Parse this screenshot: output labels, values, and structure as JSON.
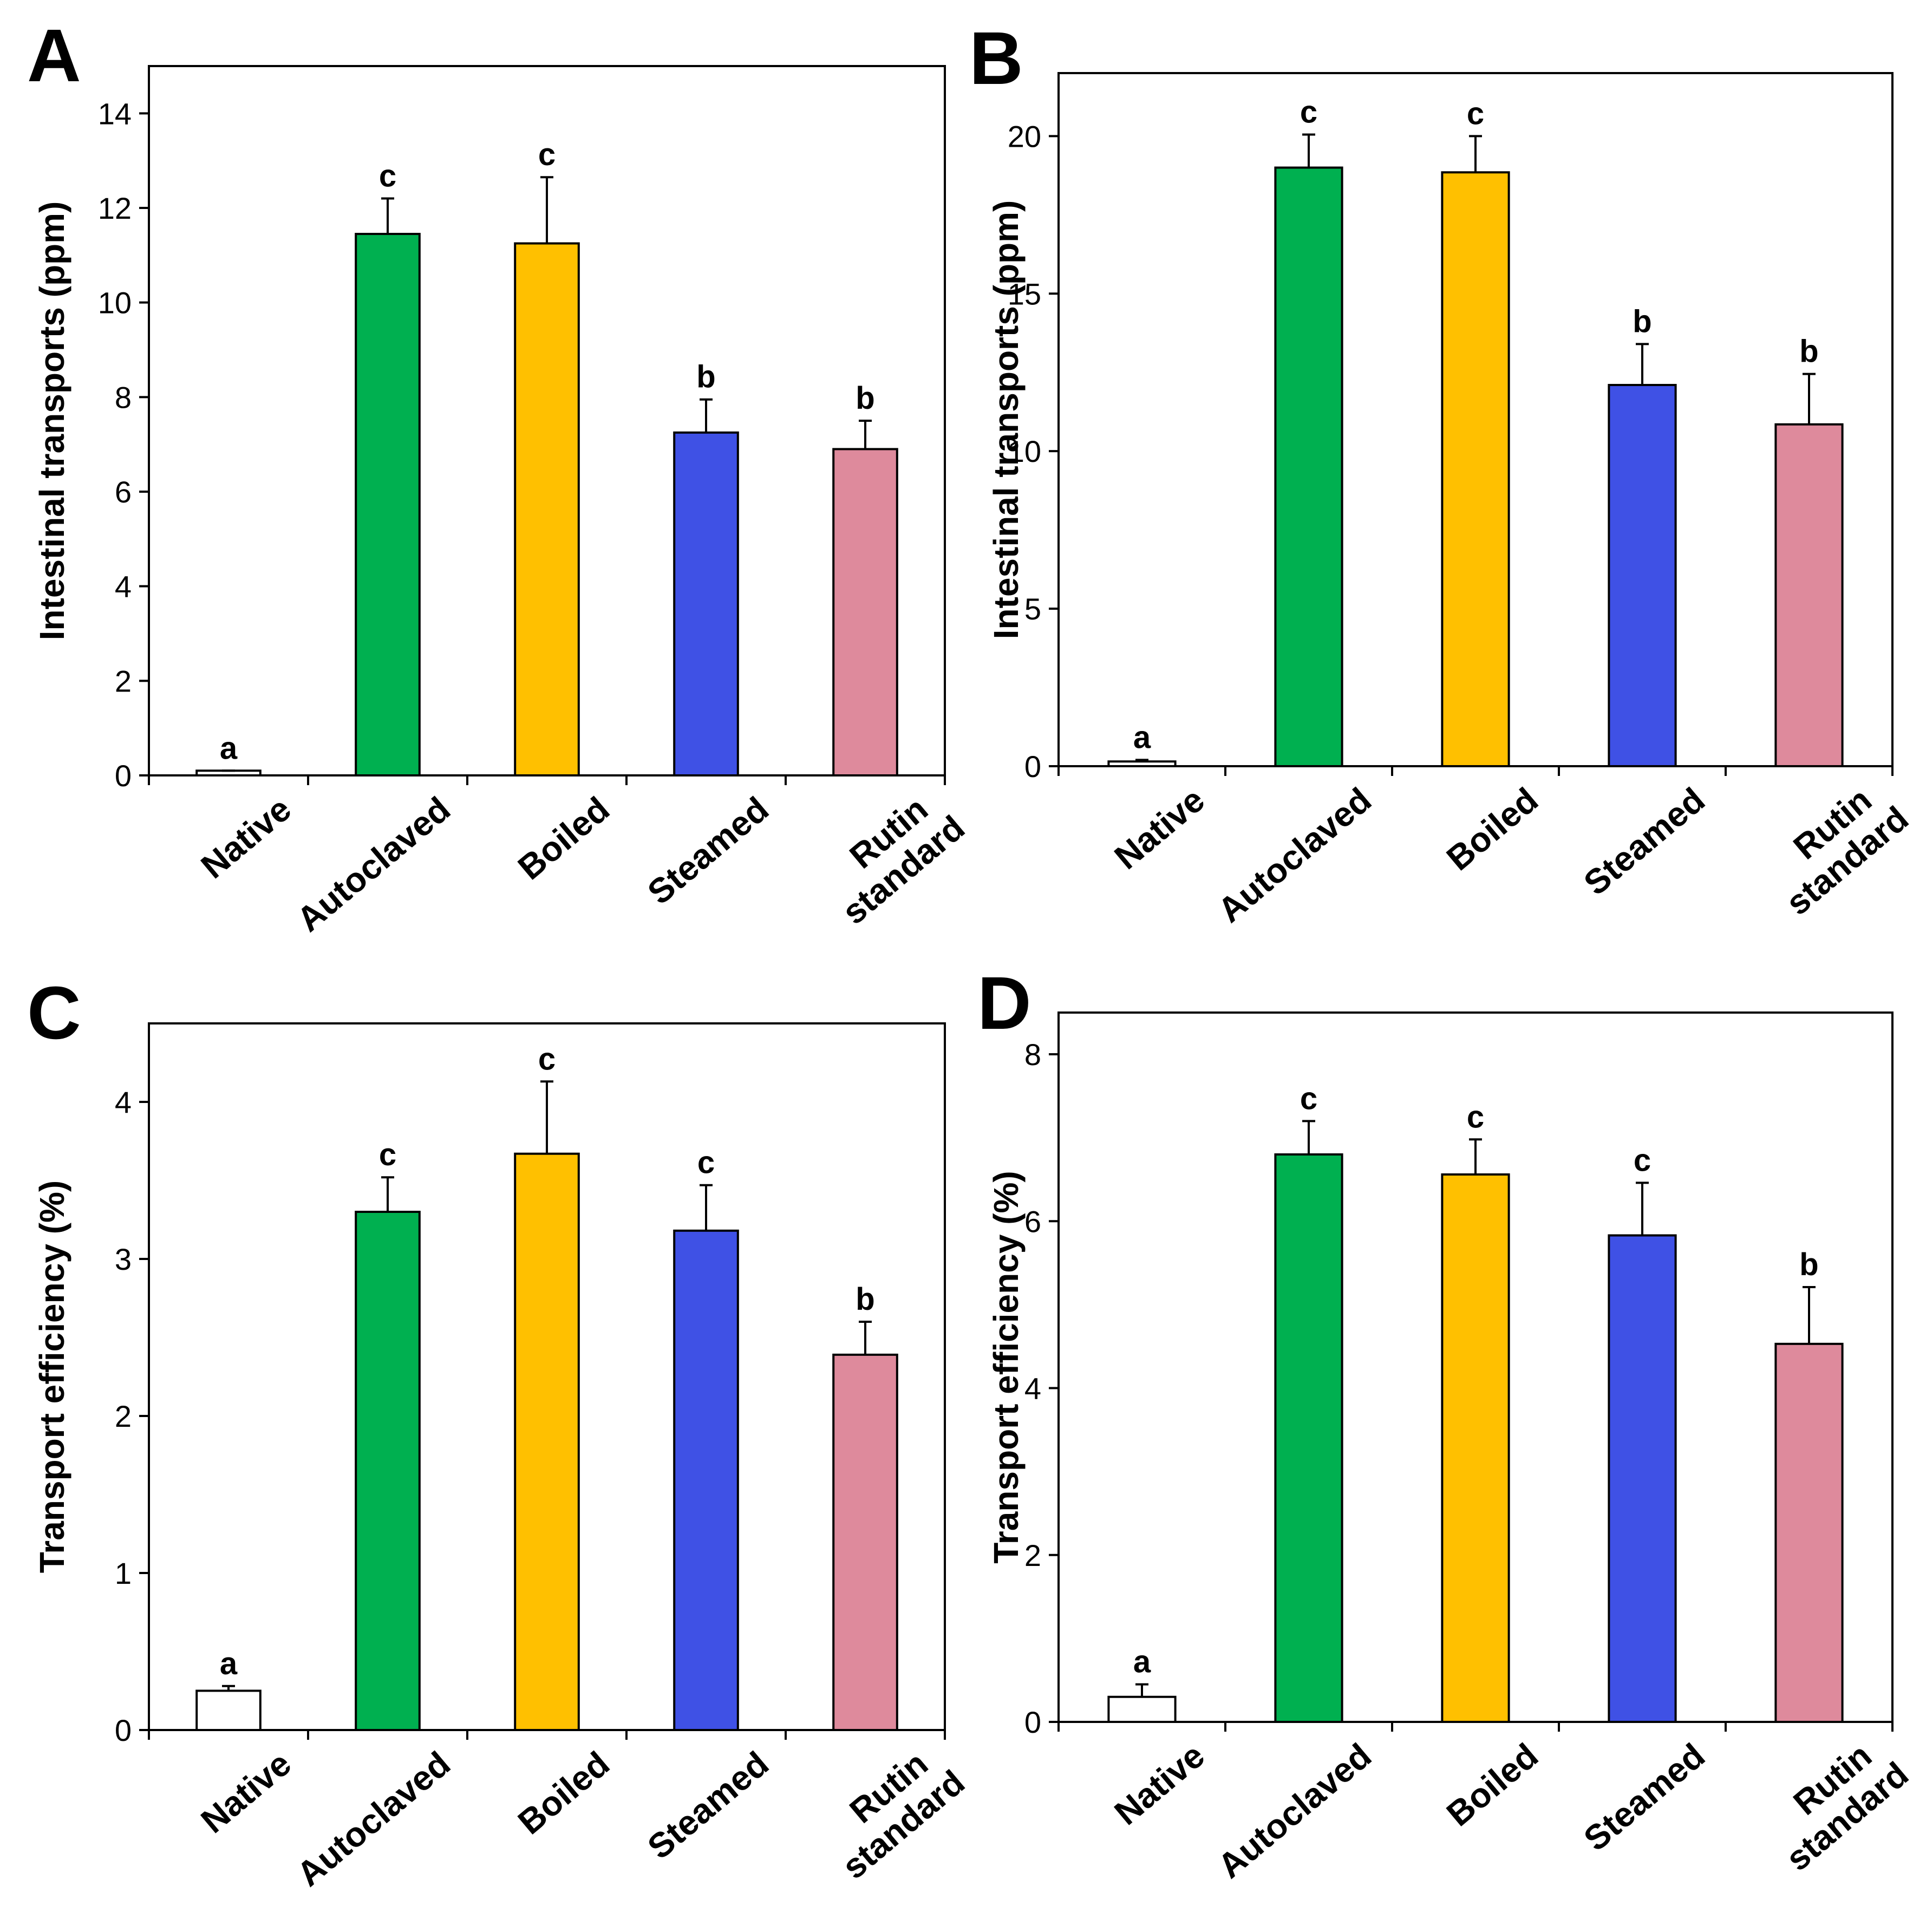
{
  "figure": {
    "colors": {
      "Native": "#ffffff",
      "Autoclaved": "#00b050",
      "Boiled": "#ffc000",
      "Steamed": "#3f51e5",
      "Rutin standard": "#de8a9c",
      "stroke": "#000000"
    }
  },
  "chart_data": [
    {
      "panel": "A",
      "type": "bar",
      "categories": [
        "Native",
        "Autoclaved",
        "Boiled",
        "Steamed",
        "Rutin standard"
      ],
      "category_lines": [
        [
          "Native"
        ],
        [
          "Autoclaved"
        ],
        [
          "Boiled"
        ],
        [
          "Steamed"
        ],
        [
          "Rutin",
          "standard"
        ]
      ],
      "values": [
        0.1,
        11.45,
        11.25,
        7.25,
        6.9
      ],
      "errors": [
        0.0,
        0.75,
        1.4,
        0.7,
        0.6
      ],
      "significance": [
        "a",
        "c",
        "c",
        "b",
        "b"
      ],
      "title": "",
      "xlabel": "",
      "ylabel": "Intestinal transports (ppm)",
      "ylim": [
        0,
        15
      ],
      "yticks": [
        0,
        2,
        4,
        6,
        8,
        10,
        12,
        14
      ],
      "grid": false
    },
    {
      "panel": "B",
      "type": "bar",
      "categories": [
        "Native",
        "Autoclaved",
        "Boiled",
        "Steamed",
        "Rutin standard"
      ],
      "category_lines": [
        [
          "Native"
        ],
        [
          "Autoclaved"
        ],
        [
          "Boiled"
        ],
        [
          "Steamed"
        ],
        [
          "Rutin",
          "standard"
        ]
      ],
      "values": [
        0.15,
        19.0,
        18.85,
        12.1,
        10.85
      ],
      "errors": [
        0.05,
        1.05,
        1.15,
        1.3,
        1.6
      ],
      "significance": [
        "a",
        "c",
        "c",
        "b",
        "b"
      ],
      "title": "",
      "xlabel": "",
      "ylabel": "Intestinal transports (ppm)",
      "ylim": [
        0,
        22
      ],
      "yticks": [
        0,
        5,
        10,
        15,
        20
      ],
      "grid": false
    },
    {
      "panel": "C",
      "type": "bar",
      "categories": [
        "Native",
        "Autoclaved",
        "Boiled",
        "Steamed",
        "Rutin standard"
      ],
      "category_lines": [
        [
          "Native"
        ],
        [
          "Autoclaved"
        ],
        [
          "Boiled"
        ],
        [
          "Steamed"
        ],
        [
          "Rutin",
          "standard"
        ]
      ],
      "values": [
        0.25,
        3.3,
        3.67,
        3.18,
        2.39
      ],
      "errors": [
        0.03,
        0.22,
        0.46,
        0.29,
        0.21
      ],
      "significance": [
        "a",
        "c",
        "c",
        "c",
        "b"
      ],
      "title": "",
      "xlabel": "",
      "ylabel": "Transport efficiency (%)",
      "ylim": [
        0,
        4.5
      ],
      "yticks": [
        0,
        1,
        2,
        3,
        4
      ],
      "grid": false
    },
    {
      "panel": "D",
      "type": "bar",
      "categories": [
        "Native",
        "Autoclaved",
        "Boiled",
        "Steamed",
        "Rutin standard"
      ],
      "category_lines": [
        [
          "Native"
        ],
        [
          "Autoclaved"
        ],
        [
          "Boiled"
        ],
        [
          "Steamed"
        ],
        [
          "Rutin",
          "standard"
        ]
      ],
      "values": [
        0.3,
        6.8,
        6.56,
        5.83,
        4.53
      ],
      "errors": [
        0.15,
        0.4,
        0.42,
        0.63,
        0.68
      ],
      "significance": [
        "a",
        "c",
        "c",
        "c",
        "b"
      ],
      "title": "",
      "xlabel": "",
      "ylabel": "Transport efficiency (%)",
      "ylim": [
        0,
        8.5
      ],
      "yticks": [
        0,
        2,
        4,
        6,
        8
      ],
      "grid": false
    }
  ]
}
